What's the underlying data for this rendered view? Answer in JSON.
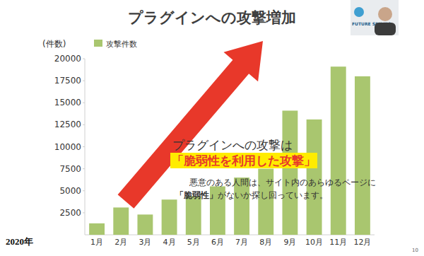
{
  "chart_data": {
    "type": "bar",
    "title": "プラグインへの攻撃増加",
    "y_label": "(件数)",
    "x_label": "2020年",
    "categories": [
      "1月",
      "2月",
      "3月",
      "4月",
      "5月",
      "6月",
      "7月",
      "8月",
      "9月",
      "10月",
      "11月",
      "12月"
    ],
    "series": [
      {
        "name": "攻撃件数",
        "color": "#a9c66f",
        "values": [
          1300,
          3100,
          2300,
          4000,
          4400,
          5500,
          6500,
          7500,
          14100,
          13100,
          19100,
          18000
        ]
      }
    ],
    "ylim": [
      0,
      20000
    ],
    "yticks": [
      2500,
      5000,
      7500,
      10000,
      12500,
      15000,
      17500,
      20000
    ],
    "grid": false,
    "legend": "top-left",
    "annotations": [
      [
        "プラグインへの攻撃は"
      ],
      [
        "「脆弱性を利用した攻撃」"
      ],
      [
        "悪意のある人間は、サイト内のあらゆるページに"
      ],
      [
        "「脆弱性」",
        "がないか探し回っています。"
      ]
    ],
    "logo": "FUTURE SPIRITS",
    "footer": "10"
  }
}
